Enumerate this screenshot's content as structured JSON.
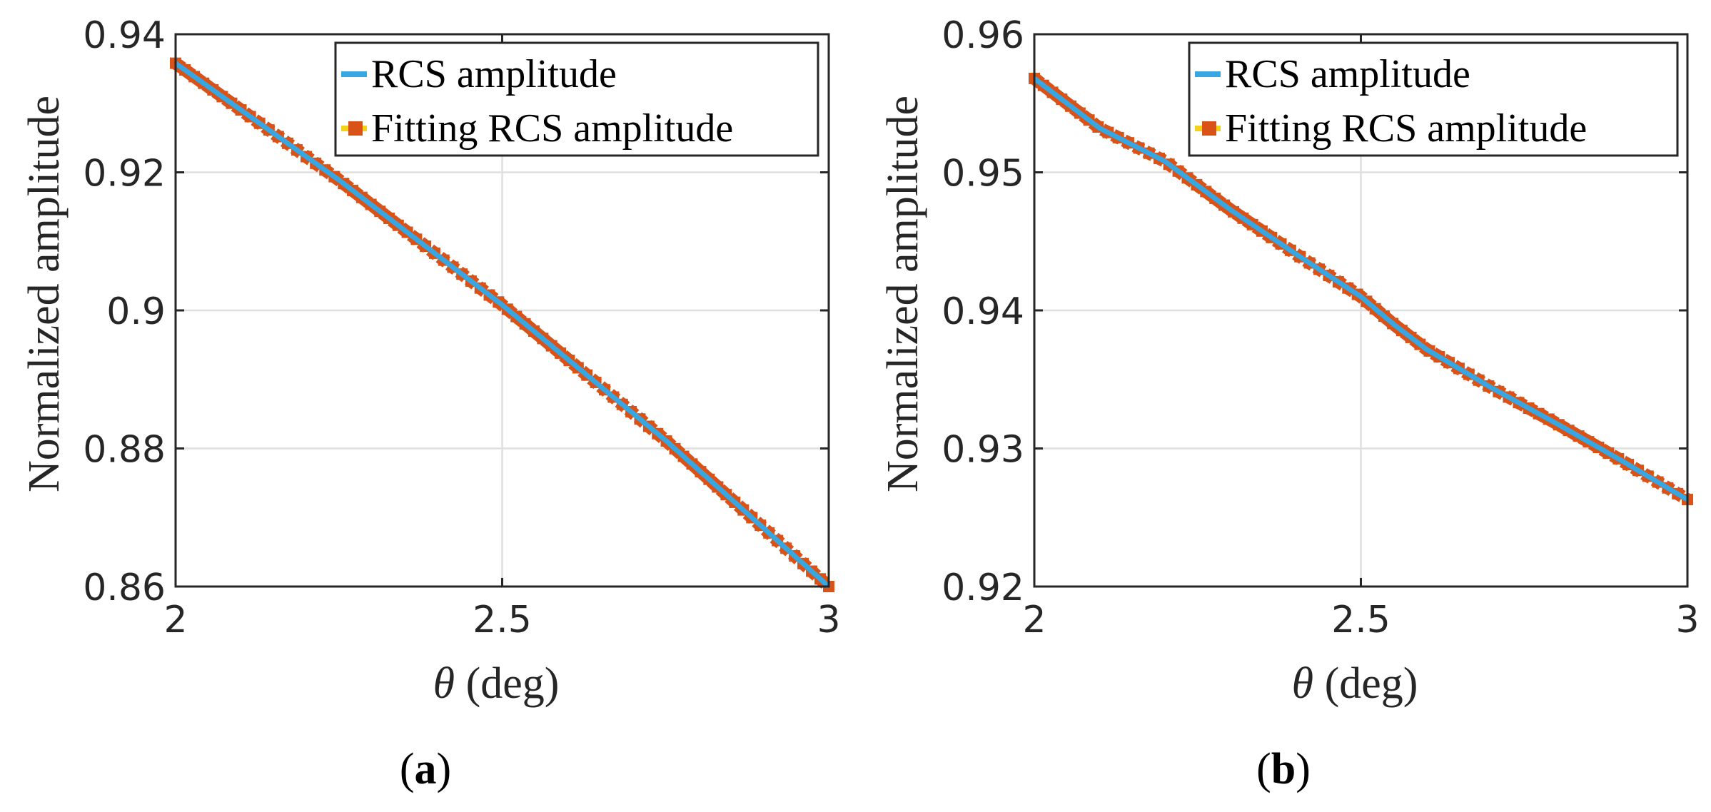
{
  "chart_data": [
    {
      "type": "line",
      "panel": "a",
      "caption": "(a)",
      "caption_parts": {
        "open": "(",
        "letter": "a",
        "close": ")"
      },
      "xlabel": "θ (deg)",
      "xlabel_parts": {
        "symbol": "θ",
        "rest": " (deg)"
      },
      "ylabel": "Normalized amplitude",
      "xlim": [
        2,
        3
      ],
      "ylim": [
        0.86,
        0.94
      ],
      "xticks": [
        "2",
        "2.5",
        "3"
      ],
      "yticks": [
        "0.86",
        "0.88",
        "0.9",
        "0.92",
        "0.94"
      ],
      "grid": true,
      "legend_position": "top-right",
      "series": [
        {
          "name": "RCS amplitude",
          "color": "#0072BD",
          "style": "solid",
          "x": [
            2.0,
            2.25,
            2.5,
            2.75,
            3.0
          ],
          "values": [
            0.9358,
            0.9189,
            0.9008,
            0.8812,
            0.86
          ]
        },
        {
          "name": "Fitting RCS amplitude",
          "color": "#D95319",
          "style": "square-markers",
          "x": [
            2.0,
            2.25,
            2.5,
            2.75,
            3.0
          ],
          "values": [
            0.9358,
            0.9189,
            0.9008,
            0.8812,
            0.86
          ]
        }
      ]
    },
    {
      "type": "line",
      "panel": "b",
      "caption": "(b)",
      "caption_parts": {
        "open": "(",
        "letter": "b",
        "close": ")"
      },
      "xlabel": "θ (deg)",
      "xlabel_parts": {
        "symbol": "θ",
        "rest": " (deg)"
      },
      "ylabel": "Normalized amplitude",
      "xlim": [
        2,
        3
      ],
      "ylim": [
        0.92,
        0.96
      ],
      "xticks": [
        "2",
        "2.5",
        "3"
      ],
      "yticks": [
        "0.92",
        "0.93",
        "0.94",
        "0.95",
        "0.96"
      ],
      "grid": true,
      "legend_position": "top-right",
      "series": [
        {
          "name": "RCS amplitude",
          "color": "#0072BD",
          "style": "solid",
          "x": [
            2.0,
            2.1,
            2.2,
            2.3,
            2.4,
            2.5,
            2.55,
            2.6,
            2.7,
            2.8,
            2.9,
            3.0
          ],
          "values": [
            0.9568,
            0.9532,
            0.9508,
            0.9473,
            0.9441,
            0.941,
            0.939,
            0.9372,
            0.9344,
            0.9318,
            0.9291,
            0.9263
          ]
        },
        {
          "name": "Fitting RCS amplitude",
          "color": "#D95319",
          "style": "square-markers",
          "x": [
            2.0,
            2.1,
            2.2,
            2.3,
            2.4,
            2.5,
            2.55,
            2.6,
            2.7,
            2.8,
            2.9,
            3.0
          ],
          "values": [
            0.9568,
            0.9532,
            0.9508,
            0.9473,
            0.9441,
            0.941,
            0.939,
            0.9372,
            0.9344,
            0.9318,
            0.9291,
            0.9263
          ]
        }
      ]
    }
  ]
}
